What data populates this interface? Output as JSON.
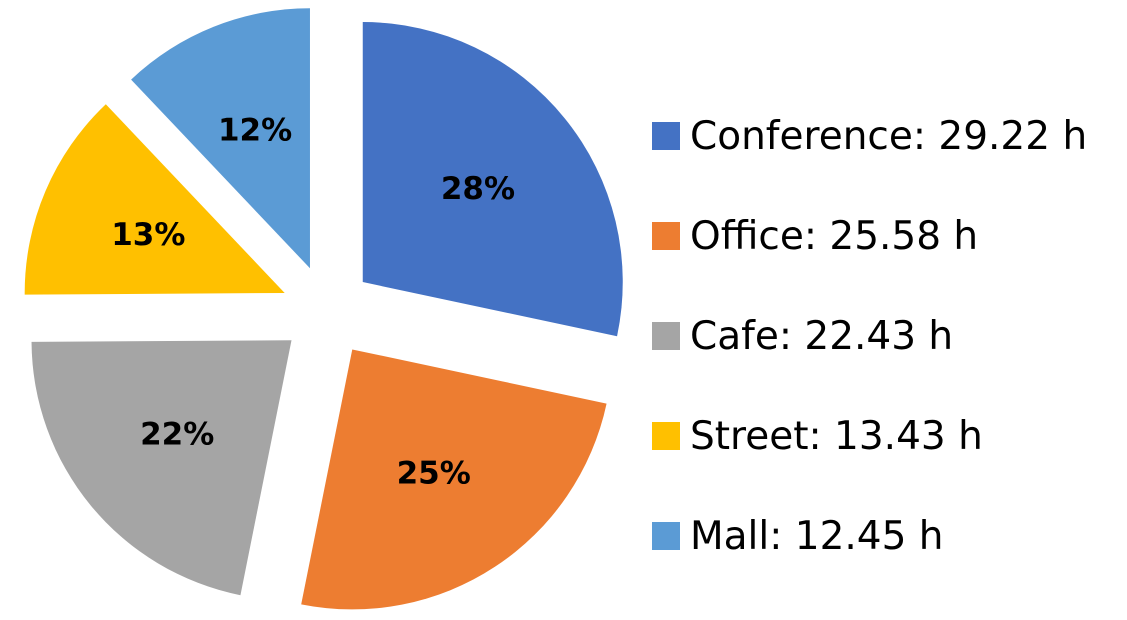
{
  "chart_data": {
    "type": "pie",
    "exploded": true,
    "label_format": "percent",
    "slices": [
      {
        "category": "Conference",
        "value": 29.22,
        "unit": "h",
        "percent_label": "28%",
        "legend_label": "Conference: 29.22 h",
        "color": "#4472C4"
      },
      {
        "category": "Office",
        "value": 25.58,
        "unit": "h",
        "percent_label": "25%",
        "legend_label": "Office: 25.58 h",
        "color": "#ED7D31"
      },
      {
        "category": "Cafe",
        "value": 22.43,
        "unit": "h",
        "percent_label": "22%",
        "legend_label": "Cafe: 22.43 h",
        "color": "#A5A5A5"
      },
      {
        "category": "Street",
        "value": 13.43,
        "unit": "h",
        "percent_label": "13%",
        "legend_label": "Street: 13.43 h",
        "color": "#FFC000"
      },
      {
        "category": "Mall",
        "value": 12.45,
        "unit": "h",
        "percent_label": "12%",
        "legend_label": "Mall: 12.45 h",
        "color": "#5B9BD5"
      }
    ],
    "legend_position": "right"
  }
}
